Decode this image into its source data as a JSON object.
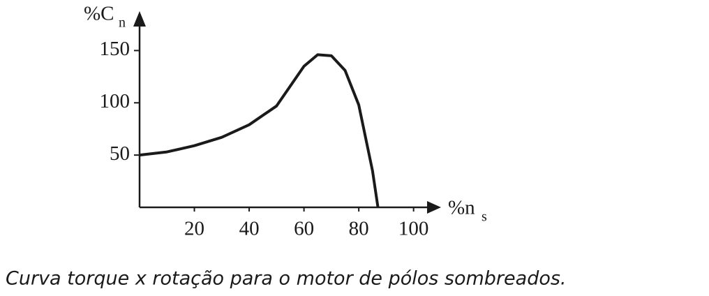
{
  "chart_data": {
    "type": "line",
    "ylabel": "%C",
    "ylabel_sub": "n",
    "xlabel": "%n",
    "xlabel_sub": "s",
    "caption": "Curva torque x rotação para o motor de pólos sombreados.",
    "x": [
      0,
      10,
      20,
      30,
      40,
      50,
      60,
      65,
      70,
      75,
      80,
      85,
      87
    ],
    "values": [
      50,
      53,
      59,
      67,
      79,
      97,
      135,
      146,
      145,
      131,
      98,
      35,
      0
    ],
    "color": "#1a1a1a",
    "xlim": [
      0,
      109
    ],
    "ylim": [
      0,
      185
    ],
    "xticks": [
      20,
      40,
      60,
      80,
      100
    ],
    "yticks": [
      50,
      100,
      150
    ],
    "grid": false
  }
}
